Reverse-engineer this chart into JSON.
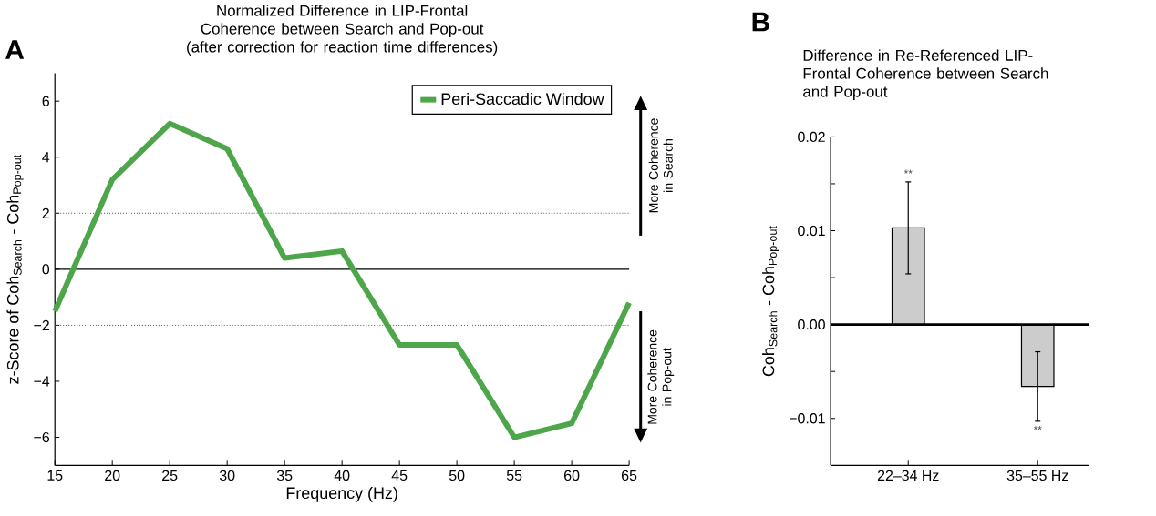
{
  "chart_data": [
    {
      "type": "line",
      "title": "Normalized Difference in LIP-Frontal Coherence between Search and Pop-out",
      "subtitle": "(after correction for reaction time differences)",
      "xlabel": "Frequency (Hz)",
      "ylabel": "z-Score of Coh$_{Search}$ - Coh$_{Pop-out}$",
      "x": [
        15,
        20,
        25,
        30,
        35,
        40,
        45,
        50,
        55,
        60,
        65
      ],
      "series": [
        {
          "name": "Peri-Saccadic Window",
          "color": "#4ea64b",
          "values": [
            -1.5,
            3.2,
            5.2,
            4.3,
            0.4,
            0.65,
            -2.7,
            -2.7,
            -6.0,
            -5.5,
            -1.2
          ]
        }
      ],
      "xlim": [
        15,
        65
      ],
      "ylim": [
        -7,
        7
      ],
      "xticks": [
        15,
        20,
        25,
        30,
        35,
        40,
        45,
        50,
        55,
        60,
        65
      ],
      "yticks": [
        {
          "value": -6,
          "label": "−6"
        },
        {
          "value": -4,
          "label": "−4"
        },
        {
          "value": -2,
          "label": "−2"
        },
        0,
        2,
        4,
        6
      ],
      "ref_lines": [
        {
          "axis": "y",
          "value": 0,
          "color": "#000000",
          "line_style": "solid"
        },
        {
          "axis": "y",
          "value": 2,
          "color": "#555555",
          "line_style": "dotted"
        },
        {
          "axis": "y",
          "value": -2,
          "color": "#555555",
          "line_style": "dotted"
        }
      ],
      "legend": "top right",
      "annotations": [
        "A",
        "More Coherence in Search",
        "More Coherence in Pop-out"
      ]
    },
    {
      "type": "bar",
      "title": "Difference in Re-Referenced LIP-Frontal Coherence between Search and Pop-out",
      "ylabel": "Coh$_{Search}$ - Coh$_{Pop-out}$",
      "categories": [
        "22–34 Hz",
        "35–55 Hz"
      ],
      "values": [
        0.0103,
        -0.0066
      ],
      "errors": [
        0.0049,
        0.0037
      ],
      "color": "#cccccc",
      "ylim": [
        -0.015,
        0.02
      ],
      "yticks": [
        {
          "value": -0.01,
          "label": "−0.01"
        },
        {
          "value": -0.005,
          "label": null
        },
        {
          "value": 0,
          "label": "0.00"
        },
        {
          "value": 0.005,
          "label": null
        },
        {
          "value": 0.01,
          "label": "0.01"
        },
        {
          "value": 0.015,
          "label": null
        },
        {
          "value": 0.02,
          "label": "0.02"
        }
      ],
      "ref_lines": [
        {
          "axis": "y",
          "value": 0,
          "color": "#000000",
          "line_style": "solid"
        }
      ],
      "annotations": [
        "B",
        "**",
        "**"
      ]
    }
  ]
}
